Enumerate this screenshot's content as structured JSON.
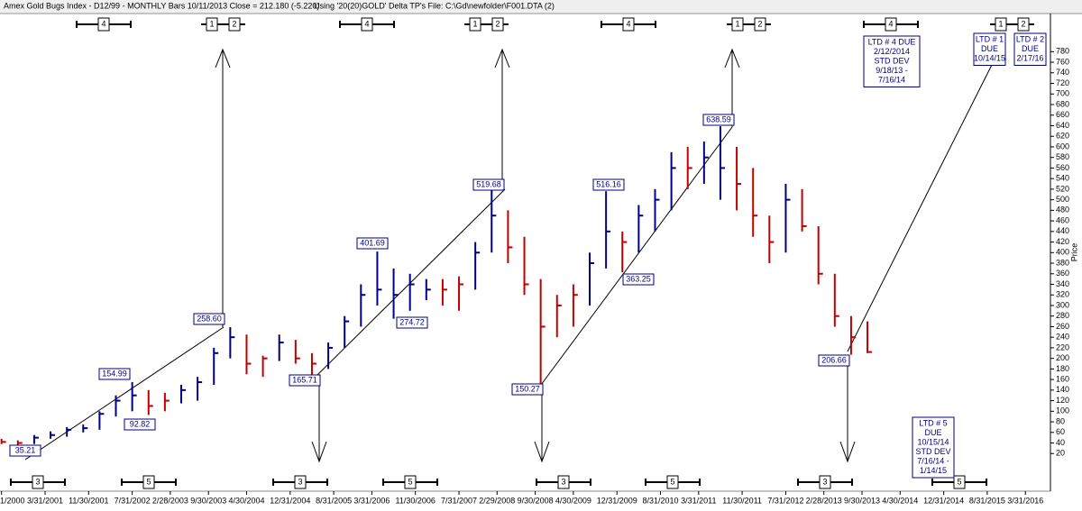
{
  "header": {
    "title": "Amex Gold Bugs Index - D12/99  - MONTHLY Bars  10/11/2013 Close = 212.180 (-5.220)",
    "info": "Using '20(20)GOLD' Delta TP's   File: C:\\Gd\\newfolder\\F001.DTA (2)"
  },
  "chart_data": {
    "type": "ohlc",
    "ylabel": "Price",
    "x": [
      2000.0,
      2000.25,
      2000.5,
      2000.75,
      2001.0,
      2001.25,
      2001.5,
      2001.75,
      2002.0,
      2002.25,
      2002.5,
      2002.75,
      2003.0,
      2003.25,
      2003.5,
      2003.75,
      2004.0,
      2004.25,
      2004.5,
      2004.75,
      2005.0,
      2005.25,
      2005.5,
      2005.75,
      2006.0,
      2006.25,
      2006.5,
      2006.75,
      2007.0,
      2007.25,
      2007.5,
      2007.75,
      2008.0,
      2008.25,
      2008.5,
      2008.75,
      2009.0,
      2009.25,
      2009.5,
      2009.75,
      2010.0,
      2010.25,
      2010.5,
      2010.75,
      2011.0,
      2011.25,
      2011.5,
      2011.75,
      2012.0,
      2012.25,
      2012.5,
      2012.75,
      2013.0,
      2013.25,
      2013.5,
      2013.75
    ],
    "high": [
      55,
      50,
      48,
      45,
      55,
      62,
      70,
      75,
      100,
      130,
      155,
      140,
      135,
      150,
      165,
      220,
      259,
      245,
      205,
      245,
      235,
      210,
      230,
      280,
      340,
      402,
      370,
      360,
      350,
      350,
      355,
      420,
      520,
      480,
      430,
      350,
      320,
      340,
      400,
      516,
      440,
      490,
      520,
      590,
      600,
      610,
      639,
      600,
      560,
      470,
      530,
      520,
      450,
      360,
      280,
      270
    ],
    "low": [
      40,
      40,
      38,
      35,
      38,
      48,
      52,
      60,
      65,
      90,
      100,
      93,
      100,
      115,
      120,
      150,
      200,
      170,
      165,
      195,
      190,
      166,
      180,
      220,
      260,
      300,
      275,
      290,
      310,
      300,
      290,
      330,
      400,
      380,
      320,
      150,
      240,
      260,
      300,
      370,
      363,
      400,
      440,
      480,
      520,
      530,
      500,
      480,
      430,
      380,
      400,
      440,
      340,
      260,
      207,
      210
    ],
    "close": [
      45,
      45,
      42,
      40,
      50,
      55,
      65,
      68,
      95,
      120,
      130,
      110,
      120,
      140,
      155,
      210,
      240,
      190,
      200,
      230,
      200,
      190,
      220,
      270,
      320,
      330,
      320,
      340,
      330,
      330,
      340,
      400,
      470,
      410,
      340,
      260,
      300,
      320,
      380,
      440,
      420,
      470,
      500,
      560,
      560,
      580,
      560,
      530,
      470,
      420,
      500,
      450,
      360,
      280,
      240,
      212
    ],
    "colors": [
      "#c00000",
      "#c00000",
      "#c00000",
      "#c00000",
      "#000080",
      "#000080",
      "#000080",
      "#000080",
      "#000080",
      "#000080",
      "#000080",
      "#c00000",
      "#c00000",
      "#000080",
      "#000080",
      "#000080",
      "#000080",
      "#c00000",
      "#c00000",
      "#000080",
      "#c00000",
      "#c00000",
      "#000080",
      "#000080",
      "#000080",
      "#000080",
      "#000080",
      "#000080",
      "#000080",
      "#c00000",
      "#c00000",
      "#000080",
      "#000080",
      "#c00000",
      "#c00000",
      "#c00000",
      "#c00000",
      "#c00000",
      "#000080",
      "#000080",
      "#c00000",
      "#000080",
      "#000080",
      "#000080",
      "#c00000",
      "#000080",
      "#000080",
      "#c00000",
      "#c00000",
      "#c00000",
      "#000080",
      "#c00000",
      "#c00000",
      "#c00000",
      "#c00000",
      "#c00000"
    ],
    "xlim": [
      2000.477,
      2016.55
    ],
    "ylim": [
      0,
      800
    ],
    "yticks": [
      20,
      40,
      60,
      80,
      100,
      120,
      140,
      160,
      180,
      200,
      220,
      240,
      260,
      280,
      300,
      320,
      340,
      360,
      380,
      400,
      420,
      440,
      460,
      480,
      500,
      520,
      540,
      560,
      580,
      600,
      620,
      640,
      660,
      680,
      700,
      720,
      740,
      760,
      780
    ],
    "xticks": [
      {
        "value": 2000.5,
        "label": "1/2000"
      },
      {
        "value": 2001.167,
        "label": "3/31/2001"
      },
      {
        "value": 2001.833,
        "label": "11/30/2001"
      },
      {
        "value": 2002.5,
        "label": "7/31/2002"
      },
      {
        "value": 2003.083,
        "label": "2/28/2003"
      },
      {
        "value": 2003.667,
        "label": "9/30/2003"
      },
      {
        "value": 2004.25,
        "label": "4/30/2004"
      },
      {
        "value": 2004.917,
        "label": "12/31/2004"
      },
      {
        "value": 2005.583,
        "label": "8/31/2005"
      },
      {
        "value": 2006.167,
        "label": "3/31/2006"
      },
      {
        "value": 2006.833,
        "label": "11/30/2006"
      },
      {
        "value": 2007.5,
        "label": "7/31/2007"
      },
      {
        "value": 2008.083,
        "label": "2/29/2008"
      },
      {
        "value": 2008.667,
        "label": "9/30/2008"
      },
      {
        "value": 2009.25,
        "label": "4/30/2009"
      },
      {
        "value": 2009.917,
        "label": "12/31/2009"
      },
      {
        "value": 2010.583,
        "label": "8/31/2010"
      },
      {
        "value": 2011.167,
        "label": "3/31/2011"
      },
      {
        "value": 2011.833,
        "label": "11/30/2011"
      },
      {
        "value": 2012.5,
        "label": "7/31/2012"
      },
      {
        "value": 2013.083,
        "label": "2/28/2013"
      },
      {
        "value": 2013.667,
        "label": "9/30/2013"
      },
      {
        "value": 2014.25,
        "label": "4/30/2014"
      },
      {
        "value": 2014.917,
        "label": "12/31/2014"
      },
      {
        "value": 2015.583,
        "label": "8/31/2015"
      },
      {
        "value": 2016.167,
        "label": "3/31/2016"
      }
    ],
    "annotations": [
      {
        "value": 35.21,
        "label": "35.21"
      },
      {
        "value": 154.99,
        "label": "154.99"
      },
      {
        "value": 92.82,
        "label": "92.82"
      },
      {
        "value": 258.6,
        "label": "258.60"
      },
      {
        "value": 165.71,
        "label": "165.71"
      },
      {
        "value": 401.69,
        "label": "401.69"
      },
      {
        "value": 274.72,
        "label": "274.72"
      },
      {
        "value": 519.68,
        "label": "519.68"
      },
      {
        "value": 150.27,
        "label": "150.27"
      },
      {
        "value": 516.16,
        "label": "516.16"
      },
      {
        "value": 363.25,
        "label": "363.25"
      },
      {
        "value": 638.59,
        "label": "638.59"
      },
      {
        "value": 206.66,
        "label": "206.66"
      }
    ],
    "top_markers": [
      "4",
      "1",
      "2",
      "4",
      "1",
      "2",
      "4",
      "1",
      "2",
      "4",
      "1",
      "2"
    ],
    "bottom_markers": [
      "3",
      "5",
      "3",
      "5",
      "3",
      "5",
      "3",
      "5"
    ],
    "notes": [
      [
        "LTD # 4 DUE",
        "2/12/2014",
        "STD DEV",
        "9/18/13 -",
        "7/16/14"
      ],
      [
        "LTD # 1",
        "DUE",
        "10/14/15"
      ],
      [
        "LTD # 2",
        "DUE",
        "2/17/16"
      ],
      [
        "LTD # 5",
        "DUE",
        "10/15/14",
        "STD DEV",
        "7/16/14 -",
        "1/14/15"
      ]
    ]
  }
}
